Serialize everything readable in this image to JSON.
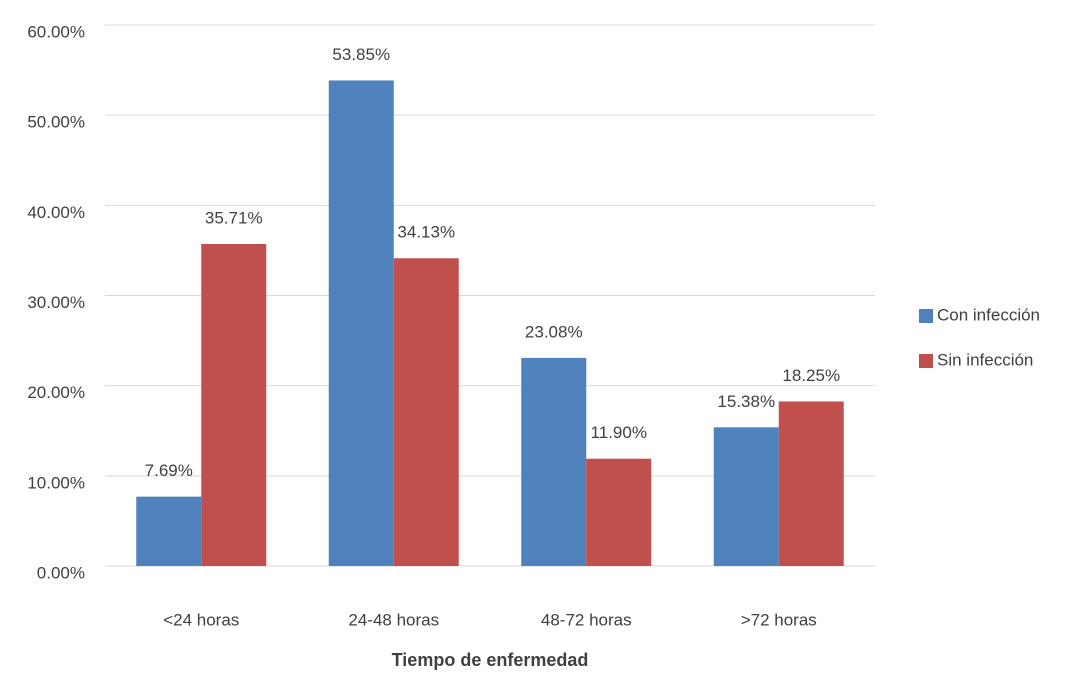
{
  "chart_data": {
    "type": "bar",
    "x_label": "Tiempo de enfermedad",
    "categories": [
      "<24 horas",
      "24-48 horas",
      "48-72 horas",
      ">72 horas"
    ],
    "series": [
      {
        "name": "Con infección",
        "color": "#4f81bd",
        "values": [
          7.69,
          53.85,
          23.08,
          15.38
        ],
        "value_labels": [
          "7.69%",
          "53.85%",
          "23.08%",
          "15.38%"
        ]
      },
      {
        "name": "Sin infección",
        "color": "#c0504d",
        "values": [
          35.71,
          34.13,
          11.9,
          18.25
        ],
        "value_labels": [
          "35.71%",
          "34.13%",
          "11.90%",
          "18.25%"
        ]
      }
    ],
    "ylim": [
      0,
      60
    ],
    "yticks": [
      {
        "value": 0,
        "label": "0.00%"
      },
      {
        "value": 10,
        "label": "10.00%"
      },
      {
        "value": 20,
        "label": "20.00%"
      },
      {
        "value": 30,
        "label": "30.00%"
      },
      {
        "value": 40,
        "label": "40.00%"
      },
      {
        "value": 50,
        "label": "50.00%"
      },
      {
        "value": 60,
        "label": "60.00%"
      }
    ],
    "grid": true,
    "legend": "right"
  }
}
